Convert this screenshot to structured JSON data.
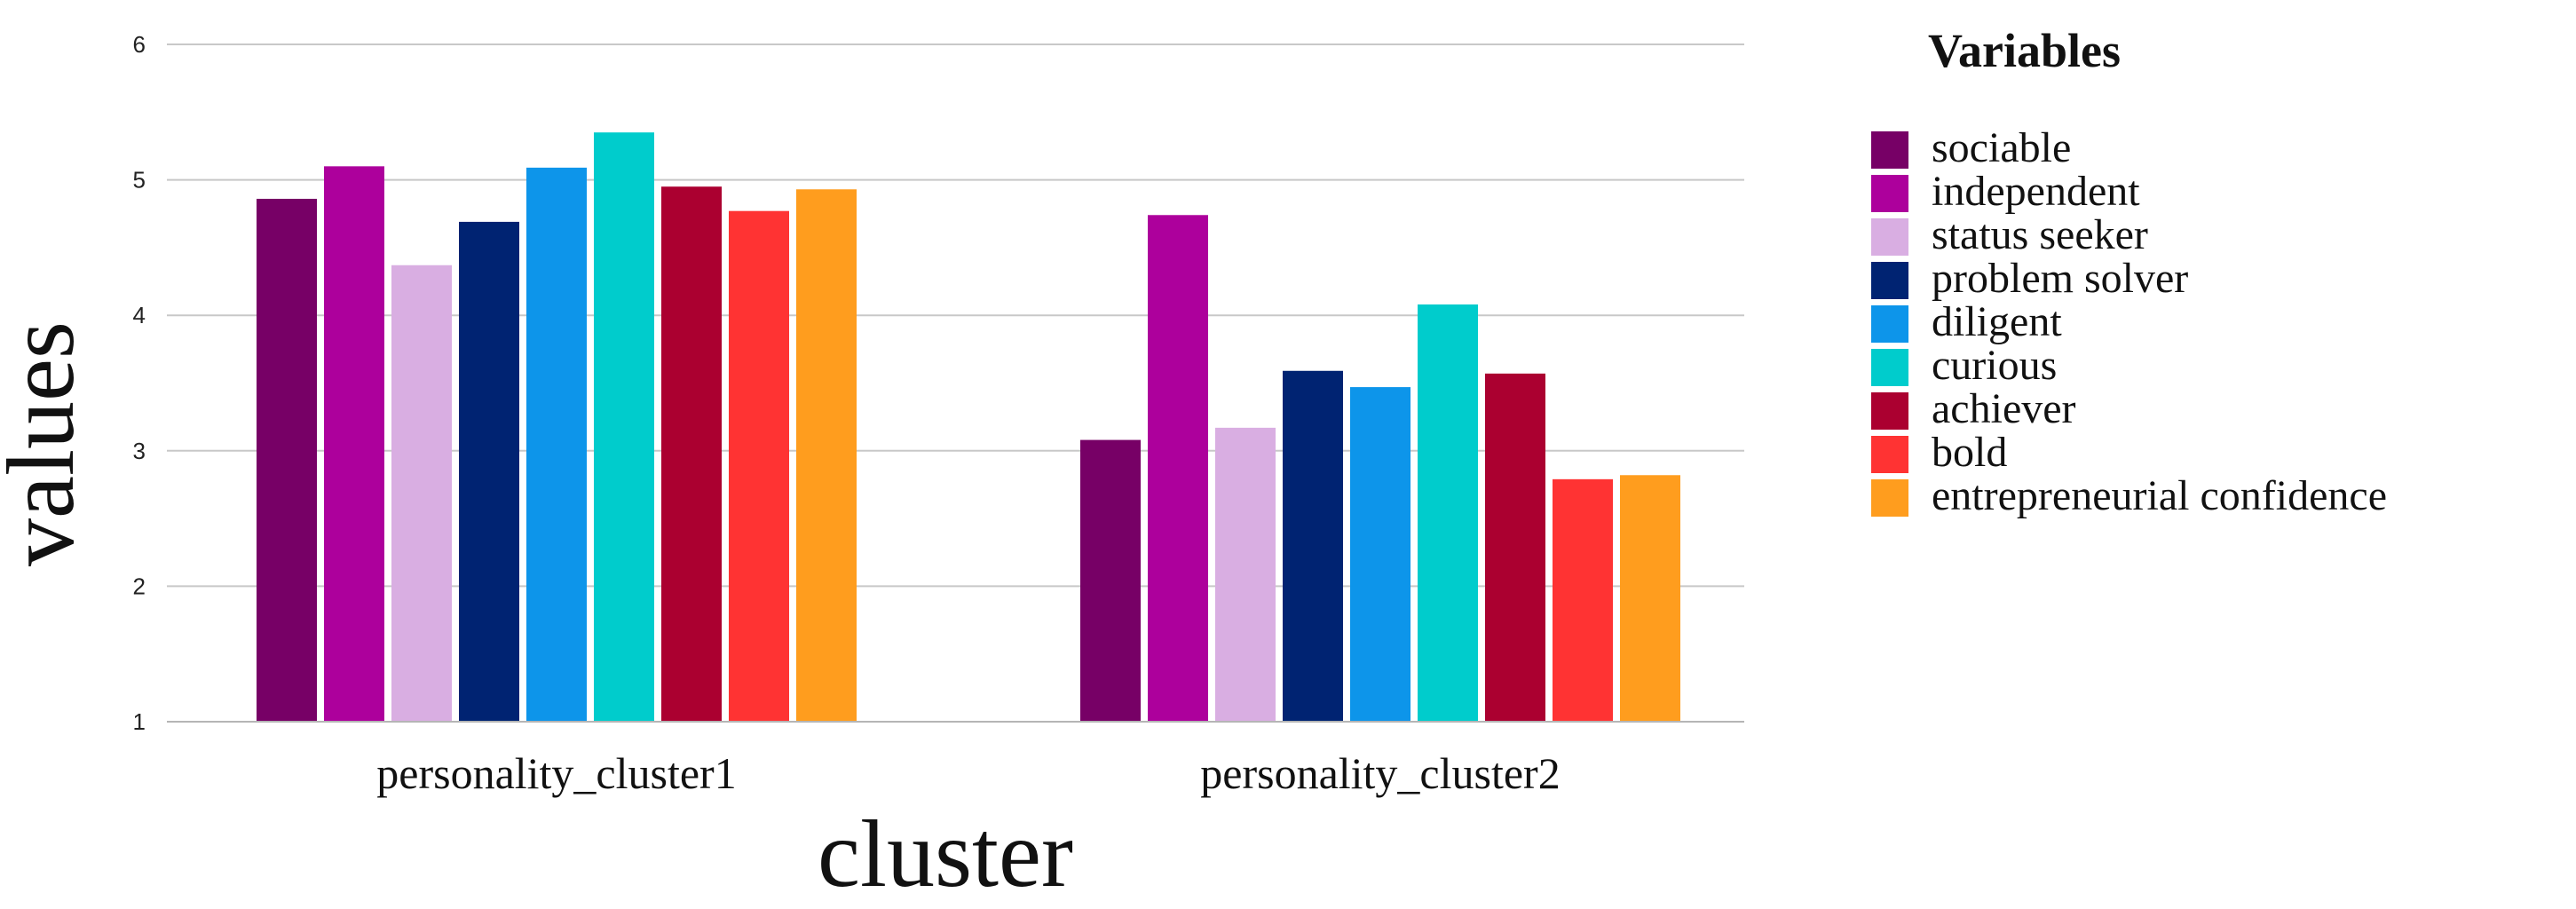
{
  "chart_data": {
    "type": "bar",
    "xlabel": "cluster",
    "ylabel": "values",
    "ylim": [
      1,
      6
    ],
    "yticks": [
      1,
      2,
      3,
      4,
      5,
      6
    ],
    "grid": true,
    "legend": {
      "title": "Variables",
      "position": "right"
    },
    "categories": [
      "personality_cluster1",
      "personality_cluster2"
    ],
    "series": [
      {
        "name": "sociable",
        "color": "#770066",
        "values": [
          4.86,
          3.08
        ]
      },
      {
        "name": "independent",
        "color": "#AD009C",
        "values": [
          5.1,
          4.74
        ]
      },
      {
        "name": "status seeker",
        "color": "#D9AEE2",
        "values": [
          4.37,
          3.17
        ]
      },
      {
        "name": "problem solver",
        "color": "#002372",
        "values": [
          4.69,
          3.59
        ]
      },
      {
        "name": "diligent",
        "color": "#0D95EA",
        "values": [
          5.09,
          3.47
        ]
      },
      {
        "name": "curious",
        "color": "#00CCCC",
        "values": [
          5.35,
          4.08
        ]
      },
      {
        "name": "achiever",
        "color": "#AB0030",
        "values": [
          4.95,
          3.57
        ]
      },
      {
        "name": "bold",
        "color": "#FF3333",
        "values": [
          4.77,
          2.79
        ]
      },
      {
        "name": "entrepreneurial confidence",
        "color": "#FF9D1E",
        "values": [
          4.93,
          2.82
        ]
      }
    ]
  }
}
